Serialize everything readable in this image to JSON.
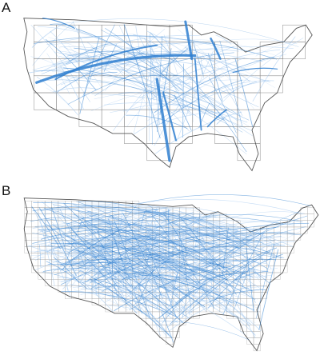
{
  "panels": [
    {
      "label": "A"
    },
    {
      "label": "B"
    }
  ],
  "colors": {
    "flow": "#2f7fd0",
    "flow_light": "#9cc4ee",
    "boundary": "#8a8a8a",
    "fine_boundary": "#a0a0a0"
  }
}
